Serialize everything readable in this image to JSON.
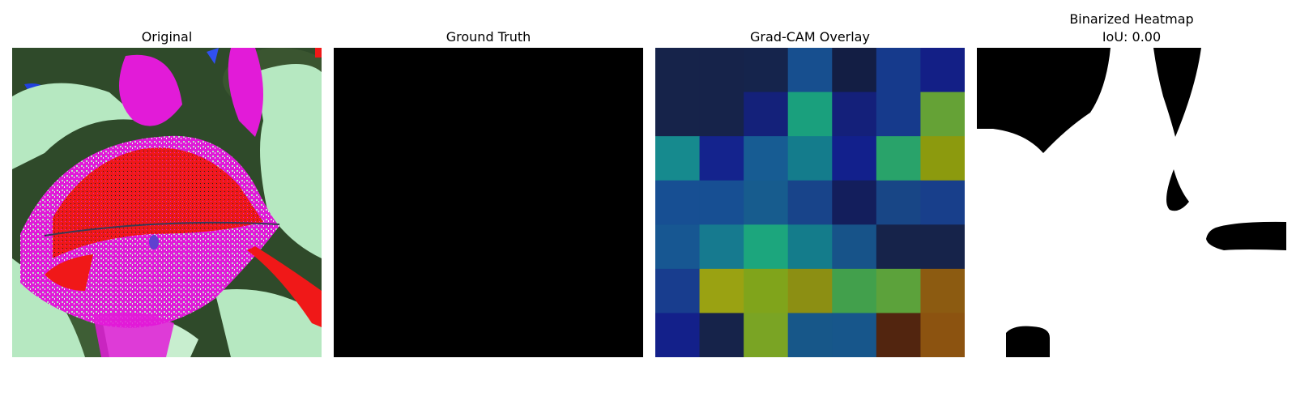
{
  "panels": [
    {
      "title": "Original"
    },
    {
      "title": "Ground Truth"
    },
    {
      "title": "Grad-CAM Overlay"
    },
    {
      "title_line1": "Binarized Heatmap",
      "title_line2": "IoU: 0.00"
    }
  ],
  "gradcam_grid": [
    [
      "#16234a",
      "#16234a",
      "#15244c",
      "#174f8f",
      "#131e44",
      "#163a8c",
      "#131f86"
    ],
    [
      "#16234a",
      "#16234a",
      "#14217a",
      "#1aa07d",
      "#14207a",
      "#163a8c",
      "#65a236"
    ],
    [
      "#168a8e",
      "#14238d",
      "#175c93",
      "#147c8c",
      "#12208c",
      "#29a36a",
      "#8c9a0e"
    ],
    [
      "#174f93",
      "#174f93",
      "#175c8e",
      "#18448a",
      "#131e5c",
      "#184686",
      "#183f8b"
    ],
    [
      "#175792",
      "#167a8f",
      "#1ca67d",
      "#147c8b",
      "#175389",
      "#16234a",
      "#16234a"
    ],
    [
      "#183d8e",
      "#9aa212",
      "#80a41b",
      "#8c8f13",
      "#42a04c",
      "#5ca23b",
      "#8c5b11"
    ],
    [
      "#13208a",
      "#16234a",
      "#7aa424",
      "#175789",
      "#17568b",
      "#52250f",
      "#8c5310"
    ]
  ],
  "colors": {
    "background": "#ffffff",
    "mask_black": "#000000",
    "mask_white": "#ffffff"
  }
}
